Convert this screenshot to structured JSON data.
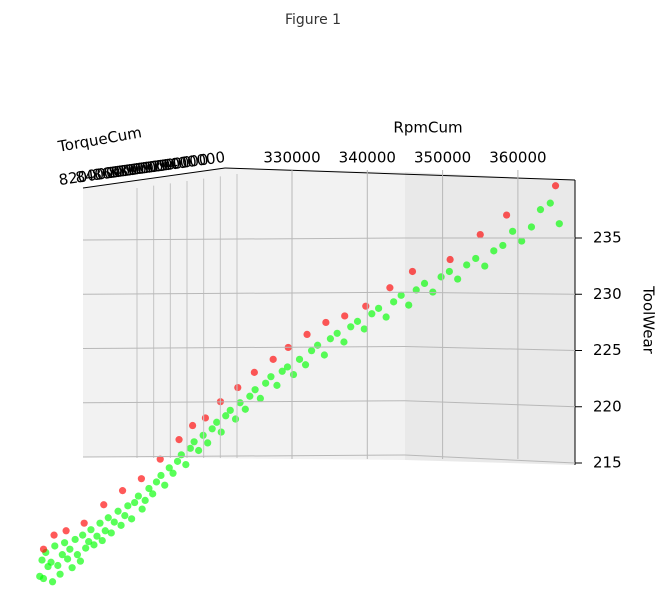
{
  "window_title": "Figure 1",
  "chart_data": {
    "type": "scatter3d",
    "xlabel": "RpmCum",
    "ylabel": "TorqueCum",
    "zlabel": "ToolWear",
    "xticks": [
      330000,
      340000,
      350000,
      360000
    ],
    "yticks": [
      8200000,
      8400000,
      8600000,
      8800000,
      9000000,
      9200000,
      9400000
    ],
    "ylim": [
      8200000,
      9400000
    ],
    "zticks": [
      215,
      220,
      225,
      230,
      235
    ],
    "series": [
      {
        "color": "#00ff00",
        "x": [
          296500,
          296800,
          297000,
          297300,
          297600,
          298000,
          298200,
          298500,
          298900,
          299200,
          299500,
          299800,
          300200,
          300500,
          300800,
          301200,
          301500,
          301900,
          302200,
          302600,
          303000,
          303300,
          303700,
          304100,
          304500,
          304800,
          305200,
          305600,
          306000,
          306400,
          306900,
          307300,
          307800,
          308200,
          308700,
          309100,
          309600,
          310100,
          310500,
          311000,
          311500,
          312000,
          312600,
          313100,
          313700,
          314200,
          314800,
          315300,
          315900,
          316500,
          317000,
          317600,
          318200,
          318800,
          319400,
          320000,
          320600,
          321200,
          321800,
          322500,
          323100,
          323800,
          324400,
          325100,
          325800,
          326500,
          327200,
          328000,
          328700,
          329400,
          330200,
          331000,
          331800,
          332600,
          333400,
          334300,
          335100,
          336000,
          336900,
          337800,
          338700,
          339600,
          340600,
          341500,
          342500,
          343500,
          344500,
          345500,
          346500,
          347600,
          348700,
          349800,
          350900,
          352000,
          353200,
          354400,
          355600,
          356800,
          358000,
          359300,
          360500,
          361800,
          363000,
          364300,
          365500
        ],
        "z": [
          204.0,
          205.5,
          203.8,
          206.2,
          204.9,
          205.3,
          203.5,
          206.8,
          205.0,
          204.2,
          206.0,
          207.1,
          205.6,
          206.5,
          204.8,
          207.4,
          206.0,
          205.4,
          207.8,
          206.6,
          207.2,
          208.3,
          206.9,
          207.7,
          208.9,
          207.3,
          208.2,
          209.4,
          208.0,
          209.0,
          210.0,
          208.7,
          209.6,
          210.5,
          209.3,
          210.8,
          211.4,
          210.2,
          211.0,
          212.1,
          211.6,
          212.7,
          213.3,
          212.4,
          214.0,
          213.5,
          214.6,
          215.2,
          214.3,
          215.8,
          216.4,
          215.6,
          217.0,
          216.3,
          217.6,
          218.2,
          217.3,
          218.8,
          219.3,
          218.5,
          220.0,
          219.4,
          220.6,
          221.2,
          220.4,
          221.8,
          222.4,
          221.6,
          222.9,
          223.3,
          222.6,
          224.0,
          223.5,
          224.8,
          225.3,
          224.4,
          225.9,
          226.4,
          225.6,
          227.0,
          227.5,
          226.8,
          228.2,
          228.7,
          227.9,
          229.3,
          229.9,
          229.0,
          230.4,
          231.0,
          230.2,
          231.6,
          232.1,
          231.4,
          232.7,
          233.3,
          232.6,
          234.0,
          234.5,
          235.8,
          234.9,
          236.2,
          237.8,
          238.4,
          236.5
        ]
      },
      {
        "color": "#ff0000",
        "x": [
          297000,
          298400,
          300000,
          302400,
          305000,
          307500,
          310000,
          312500,
          315000,
          316800,
          318500,
          320500,
          322800,
          325000,
          327500,
          329500,
          332000,
          334500,
          337000,
          339800,
          343000,
          346000,
          351000,
          355000,
          358500,
          365000
        ],
        "z": [
          206.5,
          207.8,
          208.2,
          208.9,
          210.6,
          211.9,
          213.0,
          214.8,
          216.6,
          217.9,
          218.6,
          220.1,
          221.4,
          222.8,
          224.0,
          225.1,
          226.3,
          227.4,
          228.0,
          228.9,
          230.6,
          232.1,
          233.2,
          235.5,
          237.3,
          240.0
        ]
      }
    ]
  }
}
